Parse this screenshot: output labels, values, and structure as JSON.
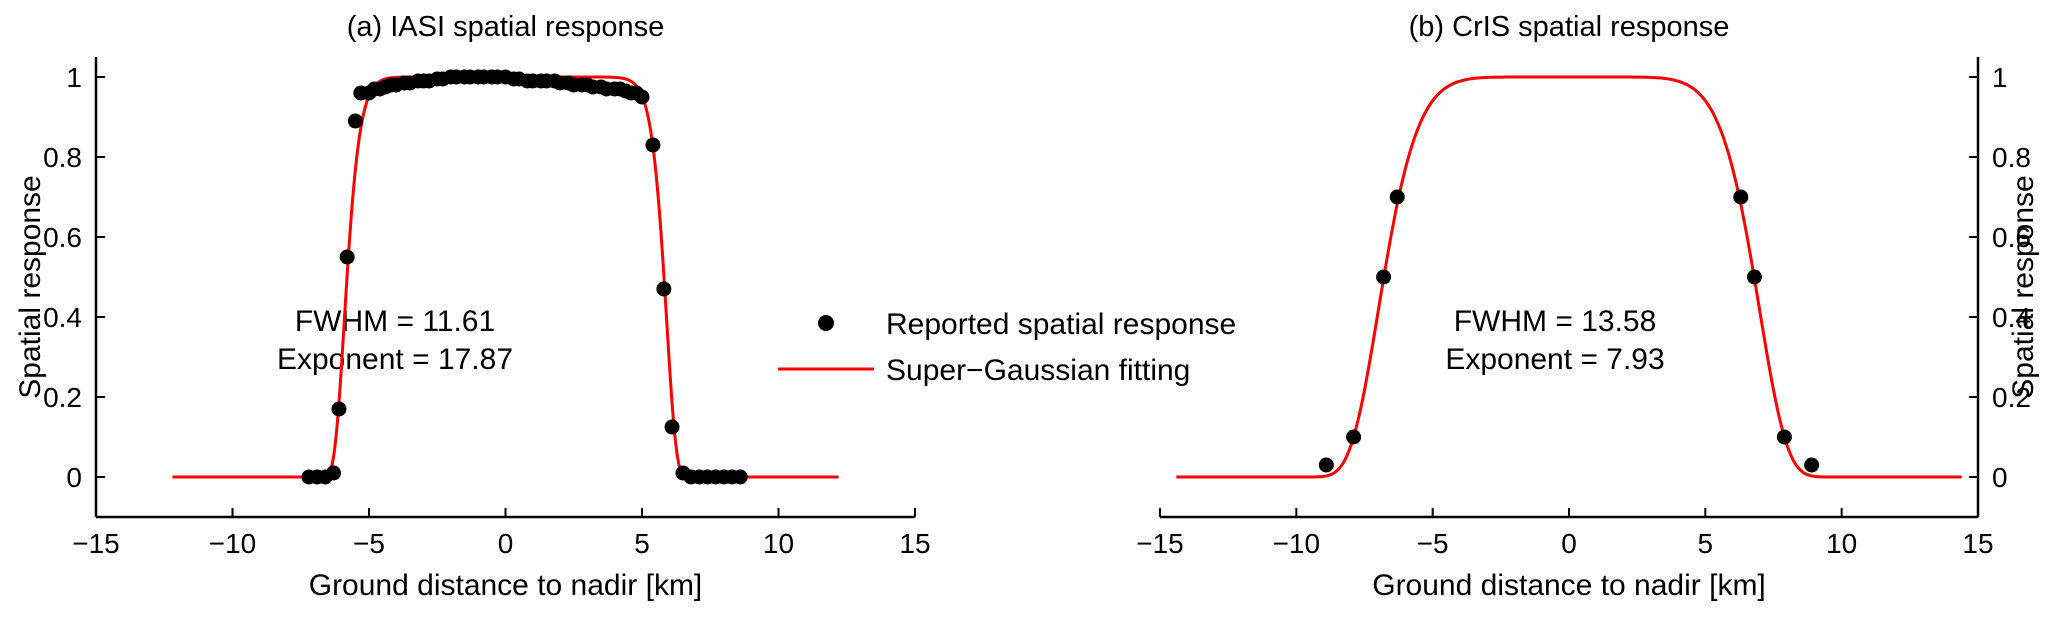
{
  "chart_data": [
    {
      "type": "scatter",
      "panel": "a",
      "title": "(a) IASI spatial response",
      "xlabel": "Ground distance to nadir [km]",
      "ylabel": "Spatial response",
      "xlim": [
        -15,
        15
      ],
      "ylim": [
        -0.1,
        1.05
      ],
      "xticks": [
        -15,
        -10,
        -5,
        0,
        5,
        10,
        15
      ],
      "yticks": [
        0,
        0.2,
        0.4,
        0.6,
        0.8,
        1
      ],
      "ytick_labels": [
        "0",
        "0.2",
        "0.4",
        "0.6",
        "0.8",
        "1"
      ],
      "yaxis_side": "left",
      "grid": false,
      "annotation": [
        "FWHM = 11.61",
        "Exponent = 17.87"
      ],
      "fit": {
        "fwhm": 11.61,
        "exponent": 17.87,
        "x_range": [
          -12.2,
          12.2
        ],
        "color": "#ff0000"
      },
      "series": [
        {
          "name": "Reported spatial response",
          "marker": "dot",
          "color": "#000000",
          "x": [
            -7.2,
            -6.9,
            -6.6,
            -6.3,
            -6.1,
            -5.8,
            -5.5,
            -5.3,
            -5.0,
            -4.8,
            -4.6,
            -4.4,
            -4.2,
            -4.0,
            -3.7,
            -3.5,
            -3.2,
            -3.0,
            -2.8,
            -2.5,
            -2.3,
            -2.0,
            -1.8,
            -1.5,
            -1.3,
            -1.0,
            -0.8,
            -0.5,
            -0.3,
            0.0,
            0.3,
            0.5,
            0.8,
            1.0,
            1.3,
            1.5,
            1.8,
            2.0,
            2.3,
            2.5,
            2.8,
            3.0,
            3.2,
            3.5,
            3.7,
            4.0,
            4.2,
            4.4,
            4.6,
            4.8,
            5.0,
            5.4,
            5.8,
            6.1,
            6.5,
            6.8,
            7.1,
            7.4,
            7.7,
            8.0,
            8.3,
            8.6
          ],
          "y": [
            0.0,
            0.0,
            0.0,
            0.01,
            0.17,
            0.55,
            0.89,
            0.96,
            0.96,
            0.97,
            0.97,
            0.975,
            0.98,
            0.98,
            0.985,
            0.985,
            0.99,
            0.99,
            0.99,
            0.995,
            0.995,
            1.0,
            1.0,
            1.0,
            1.0,
            1.0,
            1.0,
            1.0,
            1.0,
            1.0,
            0.995,
            0.995,
            0.99,
            0.99,
            0.99,
            0.99,
            0.99,
            0.985,
            0.985,
            0.98,
            0.98,
            0.98,
            0.975,
            0.975,
            0.97,
            0.97,
            0.97,
            0.965,
            0.96,
            0.96,
            0.95,
            0.83,
            0.47,
            0.125,
            0.01,
            0.0,
            0.0,
            0.0,
            0.0,
            0.0,
            0.0,
            0.0
          ]
        },
        {
          "name": "Super−Gaussian fitting",
          "marker": "line",
          "color": "#ff0000"
        }
      ]
    },
    {
      "type": "scatter",
      "panel": "b",
      "title": "(b) CrIS spatial response",
      "xlabel": "Ground distance to nadir [km]",
      "ylabel": "Spatial response",
      "xlim": [
        -15,
        15
      ],
      "ylim": [
        -0.1,
        1.05
      ],
      "xticks": [
        -15,
        -10,
        -5,
        0,
        5,
        10,
        15
      ],
      "yticks": [
        0,
        0.2,
        0.4,
        0.6,
        0.8,
        1
      ],
      "ytick_labels": [
        "0",
        "0.2",
        "0.4",
        "0.6",
        "0.8",
        "1"
      ],
      "yaxis_side": "right",
      "grid": false,
      "annotation": [
        "FWHM = 13.58",
        "Exponent = 7.93"
      ],
      "fit": {
        "fwhm": 13.58,
        "exponent": 7.93,
        "x_range": [
          -14.4,
          14.4
        ],
        "color": "#ff0000"
      },
      "series": [
        {
          "name": "Reported spatial response",
          "marker": "dot",
          "color": "#000000",
          "x": [
            -8.9,
            -7.9,
            -6.8,
            -6.3,
            6.3,
            6.8,
            7.9,
            8.9
          ],
          "y": [
            0.03,
            0.1,
            0.5,
            0.7,
            0.7,
            0.5,
            0.1,
            0.03
          ]
        },
        {
          "name": "Super−Gaussian fitting",
          "marker": "line",
          "color": "#ff0000"
        }
      ]
    }
  ],
  "legend": {
    "placement": "center-between-panels",
    "entries": [
      {
        "label": "Reported spatial response",
        "marker": "dot",
        "color": "#000000"
      },
      {
        "label": "Super−Gaussian fitting",
        "marker": "line",
        "color": "#ff0000"
      }
    ]
  }
}
